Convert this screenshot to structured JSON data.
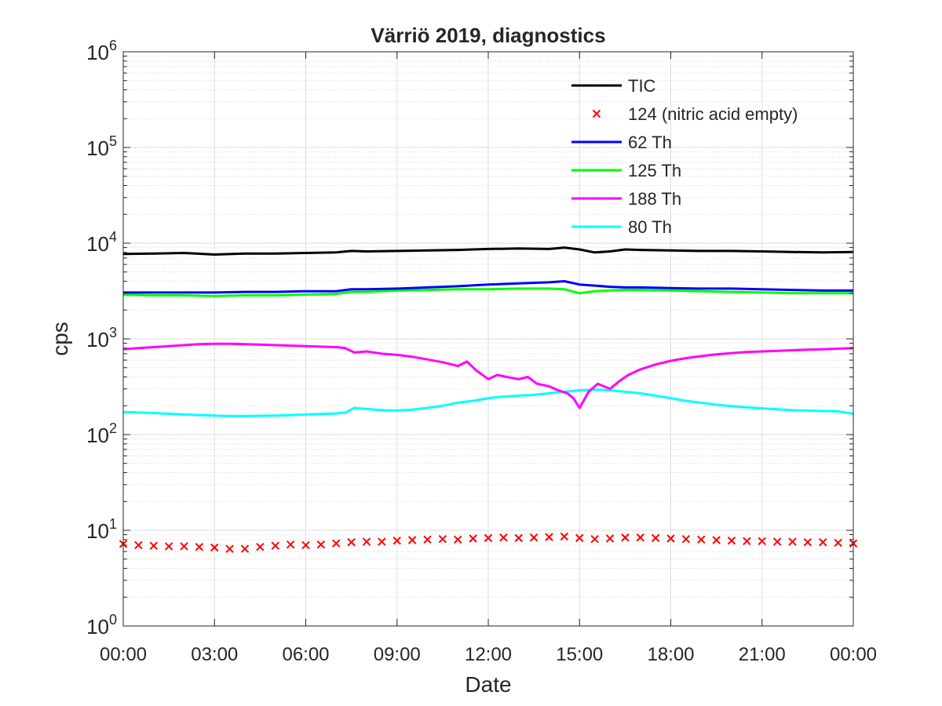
{
  "chart_data": {
    "type": "line",
    "title": "Värriö 2019, diagnostics",
    "xlabel": "Date",
    "ylabel": "cps",
    "y_scale": "log",
    "ylim": [
      1,
      1000000
    ],
    "y_ticks": [
      {
        "value": 1,
        "base": "10",
        "exp": "0"
      },
      {
        "value": 10,
        "base": "10",
        "exp": "1"
      },
      {
        "value": 100,
        "base": "10",
        "exp": "2"
      },
      {
        "value": 1000,
        "base": "10",
        "exp": "3"
      },
      {
        "value": 10000,
        "base": "10",
        "exp": "4"
      },
      {
        "value": 100000,
        "base": "10",
        "exp": "5"
      },
      {
        "value": 1000000,
        "base": "10",
        "exp": "6"
      }
    ],
    "xlim": [
      "00:00",
      "24:00"
    ],
    "x_ticks": [
      {
        "hour": 0,
        "label": "00:00"
      },
      {
        "hour": 3,
        "label": "03:00"
      },
      {
        "hour": 6,
        "label": "06:00"
      },
      {
        "hour": 9,
        "label": "09:00"
      },
      {
        "hour": 12,
        "label": "12:00"
      },
      {
        "hour": 15,
        "label": "15:00"
      },
      {
        "hour": 18,
        "label": "18:00"
      },
      {
        "hour": 21,
        "label": "21:00"
      },
      {
        "hour": 24,
        "label": "00:00"
      }
    ],
    "grid": true,
    "minor_grid": true,
    "legend_position": "top-right",
    "series": [
      {
        "name": "TIC",
        "color": "#000000",
        "style": "line",
        "x": [
          0,
          1,
          2,
          3,
          4,
          5,
          6,
          7,
          7.5,
          8,
          9,
          10,
          11,
          12,
          13,
          14,
          14.5,
          15,
          15.5,
          16,
          16.5,
          17,
          18,
          19,
          20,
          21,
          22,
          23,
          24
        ],
        "y": [
          7700,
          7800,
          7900,
          7600,
          7800,
          7800,
          7900,
          8000,
          8300,
          8200,
          8300,
          8400,
          8500,
          8700,
          8800,
          8700,
          9000,
          8600,
          8000,
          8200,
          8600,
          8500,
          8400,
          8300,
          8300,
          8200,
          8100,
          8000,
          8100
        ]
      },
      {
        "name": "124 (nitric acid empty)",
        "color": "#ff0000",
        "style": "marker-x",
        "x": [
          0,
          0.5,
          1,
          1.5,
          2,
          2.5,
          3,
          3.5,
          4,
          4.5,
          5,
          5.5,
          6,
          6.5,
          7,
          7.5,
          8,
          8.5,
          9,
          9.5,
          10,
          10.5,
          11,
          11.5,
          12,
          12.5,
          13,
          13.5,
          14,
          14.5,
          15,
          15.5,
          16,
          16.5,
          17,
          17.5,
          18,
          18.5,
          19,
          19.5,
          20,
          20.5,
          21,
          21.5,
          22,
          22.5,
          23,
          23.5,
          24
        ],
        "y": [
          7.2,
          7.0,
          6.9,
          6.8,
          6.8,
          6.7,
          6.6,
          6.4,
          6.4,
          6.7,
          6.9,
          7.1,
          7.0,
          7.1,
          7.3,
          7.5,
          7.6,
          7.6,
          7.8,
          7.9,
          8.0,
          8.1,
          8.0,
          8.2,
          8.3,
          8.4,
          8.3,
          8.4,
          8.5,
          8.6,
          8.3,
          8.1,
          8.2,
          8.4,
          8.4,
          8.3,
          8.2,
          8.1,
          8.0,
          7.9,
          7.8,
          7.7,
          7.7,
          7.6,
          7.6,
          7.5,
          7.5,
          7.4,
          7.3
        ]
      },
      {
        "name": "62 Th",
        "color": "#0000ff",
        "style": "line",
        "x": [
          0,
          1,
          2,
          3,
          4,
          5,
          6,
          7,
          7.5,
          8,
          9,
          10,
          11,
          12,
          13,
          14,
          14.5,
          15,
          15.5,
          16,
          16.5,
          17,
          18,
          19,
          20,
          21,
          22,
          23,
          24
        ],
        "y": [
          3050,
          3050,
          3050,
          3050,
          3100,
          3100,
          3150,
          3150,
          3300,
          3300,
          3350,
          3450,
          3550,
          3700,
          3800,
          3900,
          4000,
          3700,
          3600,
          3500,
          3450,
          3450,
          3400,
          3350,
          3350,
          3300,
          3250,
          3200,
          3200
        ]
      },
      {
        "name": "125 Th",
        "color": "#00ff00",
        "style": "line",
        "x": [
          0,
          1,
          2,
          3,
          4,
          5,
          6,
          7,
          7.5,
          8,
          9,
          10,
          11,
          12,
          13,
          14,
          14.5,
          15,
          15.5,
          16,
          16.5,
          17,
          18,
          19,
          20,
          21,
          22,
          23,
          24
        ],
        "y": [
          2900,
          2850,
          2850,
          2800,
          2850,
          2850,
          2900,
          2950,
          3100,
          3100,
          3200,
          3250,
          3300,
          3300,
          3350,
          3350,
          3300,
          3000,
          3150,
          3200,
          3250,
          3250,
          3200,
          3150,
          3100,
          3050,
          3000,
          3000,
          3000
        ]
      },
      {
        "name": "188 Th",
        "color": "#ff00ff",
        "style": "line",
        "x": [
          0,
          0.5,
          1,
          1.5,
          2,
          2.5,
          3,
          3.5,
          4,
          4.5,
          5,
          5.5,
          6,
          6.5,
          7,
          7.3,
          7.6,
          8,
          8.5,
          9,
          9.5,
          10,
          10.5,
          11,
          11.3,
          11.6,
          12,
          12.3,
          12.6,
          13,
          13.3,
          13.6,
          14,
          14.3,
          14.6,
          14.8,
          15,
          15.3,
          15.6,
          16,
          16.3,
          16.6,
          17,
          17.5,
          18,
          18.5,
          19,
          19.5,
          20,
          20.5,
          21,
          21.5,
          22,
          22.5,
          23,
          23.5,
          24
        ],
        "y": [
          780,
          800,
          820,
          840,
          860,
          880,
          890,
          890,
          880,
          870,
          860,
          850,
          840,
          830,
          820,
          800,
          720,
          740,
          700,
          680,
          650,
          610,
          570,
          520,
          580,
          470,
          380,
          420,
          400,
          380,
          400,
          340,
          320,
          290,
          270,
          240,
          190,
          280,
          340,
          300,
          360,
          420,
          480,
          540,
          590,
          630,
          660,
          690,
          710,
          730,
          740,
          750,
          760,
          770,
          780,
          790,
          800
        ]
      },
      {
        "name": "80 Th",
        "color": "#00ffff",
        "style": "line",
        "x": [
          0,
          0.5,
          1,
          1.5,
          2,
          2.5,
          3,
          3.5,
          4,
          4.5,
          5,
          5.5,
          6,
          6.5,
          7,
          7.3,
          7.6,
          8,
          8.5,
          9,
          9.5,
          10,
          10.5,
          11,
          11.5,
          12,
          12.5,
          13,
          13.5,
          14,
          14.5,
          15,
          15.5,
          16,
          16.5,
          17,
          17.5,
          18,
          18.5,
          19,
          19.5,
          20,
          20.5,
          21,
          21.5,
          22,
          22.5,
          23,
          23.5,
          24
        ],
        "y": [
          172,
          170,
          168,
          165,
          162,
          160,
          158,
          156,
          156,
          157,
          158,
          160,
          162,
          164,
          166,
          170,
          190,
          185,
          180,
          178,
          182,
          190,
          200,
          215,
          225,
          240,
          250,
          255,
          260,
          270,
          280,
          290,
          295,
          290,
          280,
          270,
          255,
          240,
          225,
          215,
          205,
          198,
          192,
          188,
          184,
          180,
          178,
          176,
          175,
          165
        ]
      }
    ]
  }
}
